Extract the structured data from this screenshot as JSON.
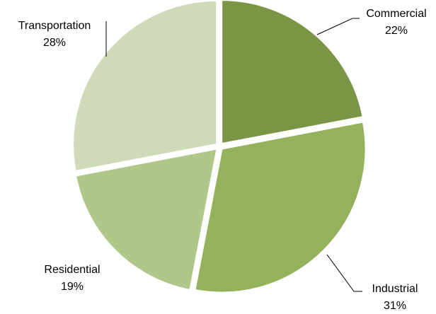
{
  "chart_data": {
    "type": "pie",
    "title": "",
    "slices": [
      {
        "name": "Commercial",
        "value": 22,
        "label": "22%",
        "color": "#7a9546"
      },
      {
        "name": "Industrial",
        "value": 31,
        "label": "31%",
        "color": "#94b25b"
      },
      {
        "name": "Residential",
        "value": 19,
        "label": "19%",
        "color": "#b0c78a"
      },
      {
        "name": "Transportation",
        "value": 28,
        "label": "28%",
        "color": "#cfdbb8"
      }
    ],
    "start": "12 o'clock",
    "direction": "clockwise",
    "exploded": true,
    "legend": "none",
    "labels": "outside with leader lines"
  }
}
